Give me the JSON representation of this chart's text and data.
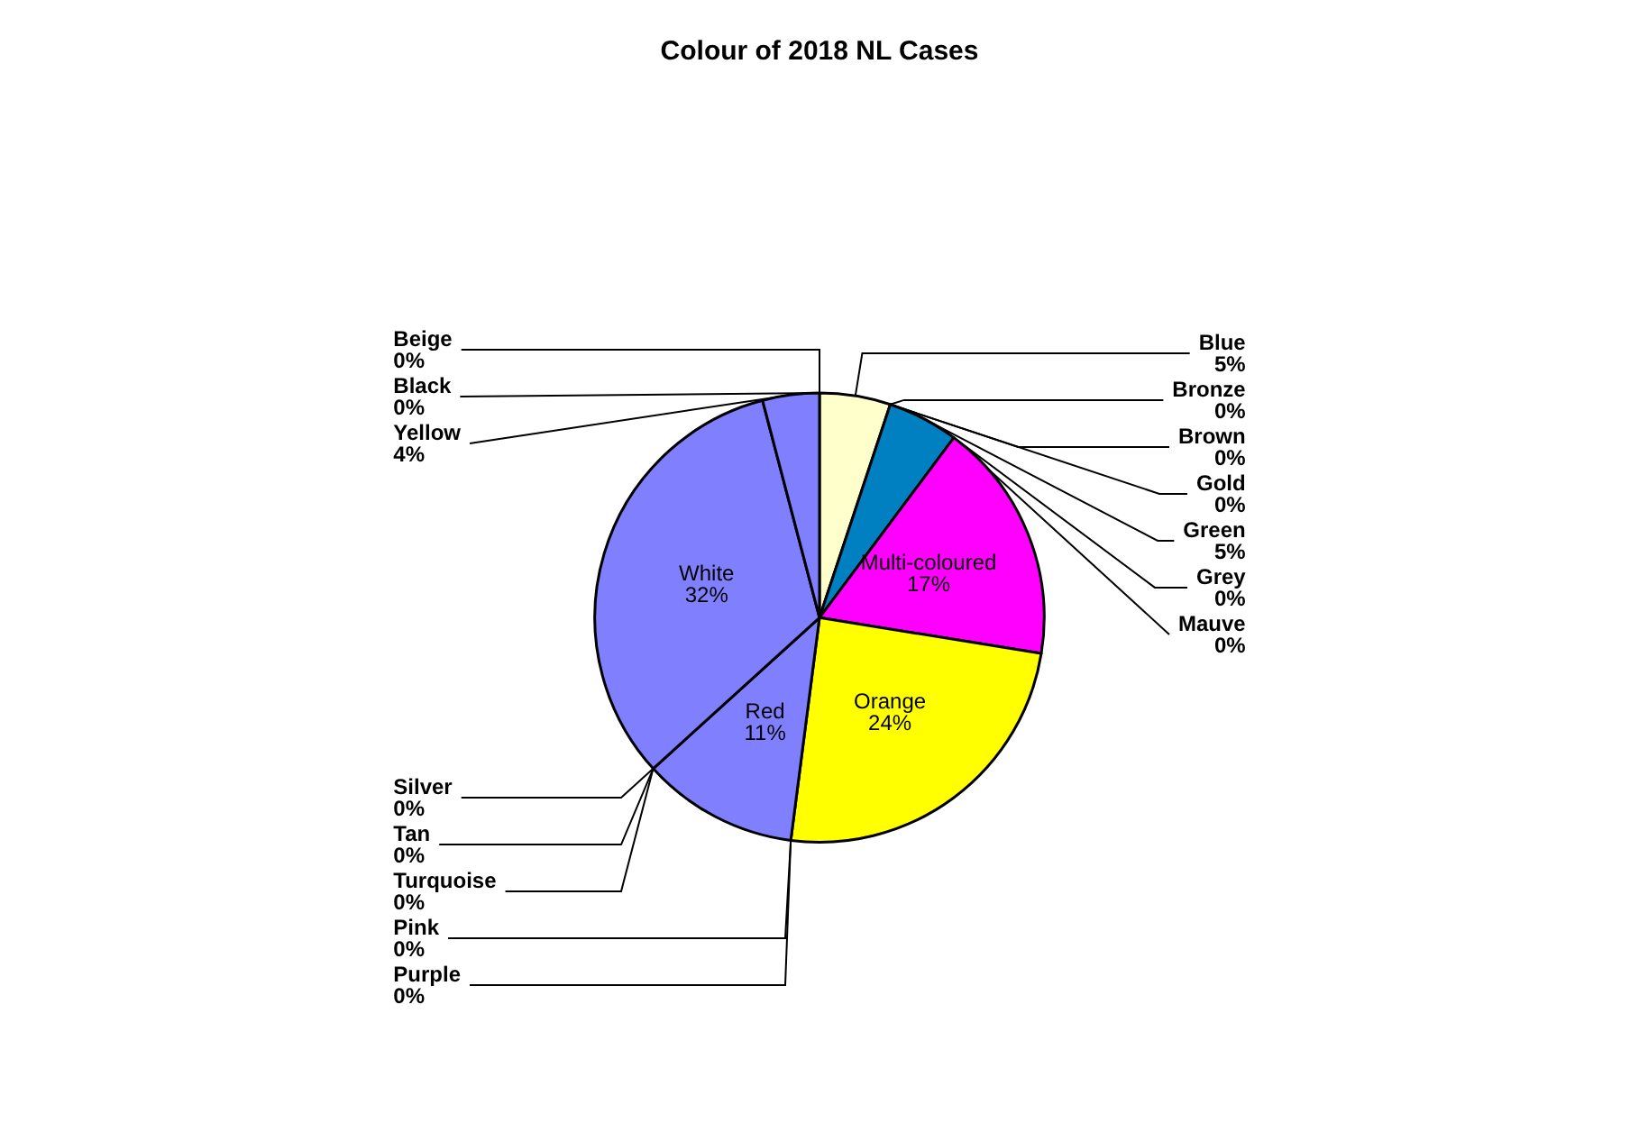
{
  "chart_data": {
    "type": "pie",
    "title": "Colour of 2018 NL Cases",
    "categories": [
      "Beige",
      "Blue",
      "Bronze",
      "Brown",
      "Gold",
      "Green",
      "Grey",
      "Mauve",
      "Multi-coloured",
      "Orange",
      "Pink",
      "Purple",
      "Red",
      "Silver",
      "Tan",
      "Turquoise",
      "White",
      "Yellow",
      "Black"
    ],
    "values": [
      0,
      5,
      0,
      0,
      0,
      5,
      0,
      0,
      17,
      24,
      0,
      0,
      11,
      0,
      0,
      0,
      32,
      4,
      0
    ],
    "value_labels": [
      "0%",
      "5%",
      "0%",
      "0%",
      "0%",
      "5%",
      "0%",
      "0%",
      "17%",
      "24%",
      "0%",
      "0%",
      "11%",
      "0%",
      "0%",
      "0%",
      "32%",
      "4%",
      "0%"
    ],
    "colors": [
      "#ffffcc",
      "#ffffcc",
      "#c08080",
      "#c08080",
      "#ffc0c0",
      "#0080c0",
      "#c0c0c0",
      "#c0c0ff",
      "#ff00ff",
      "#ffff00",
      "#00c0c0",
      "#00c0c0",
      "#8080ff",
      "#c0c0c0",
      "#c0a080",
      "#00ffff",
      "#8080ff",
      "#8080ff",
      "#8080ff"
    ],
    "legend": false
  }
}
